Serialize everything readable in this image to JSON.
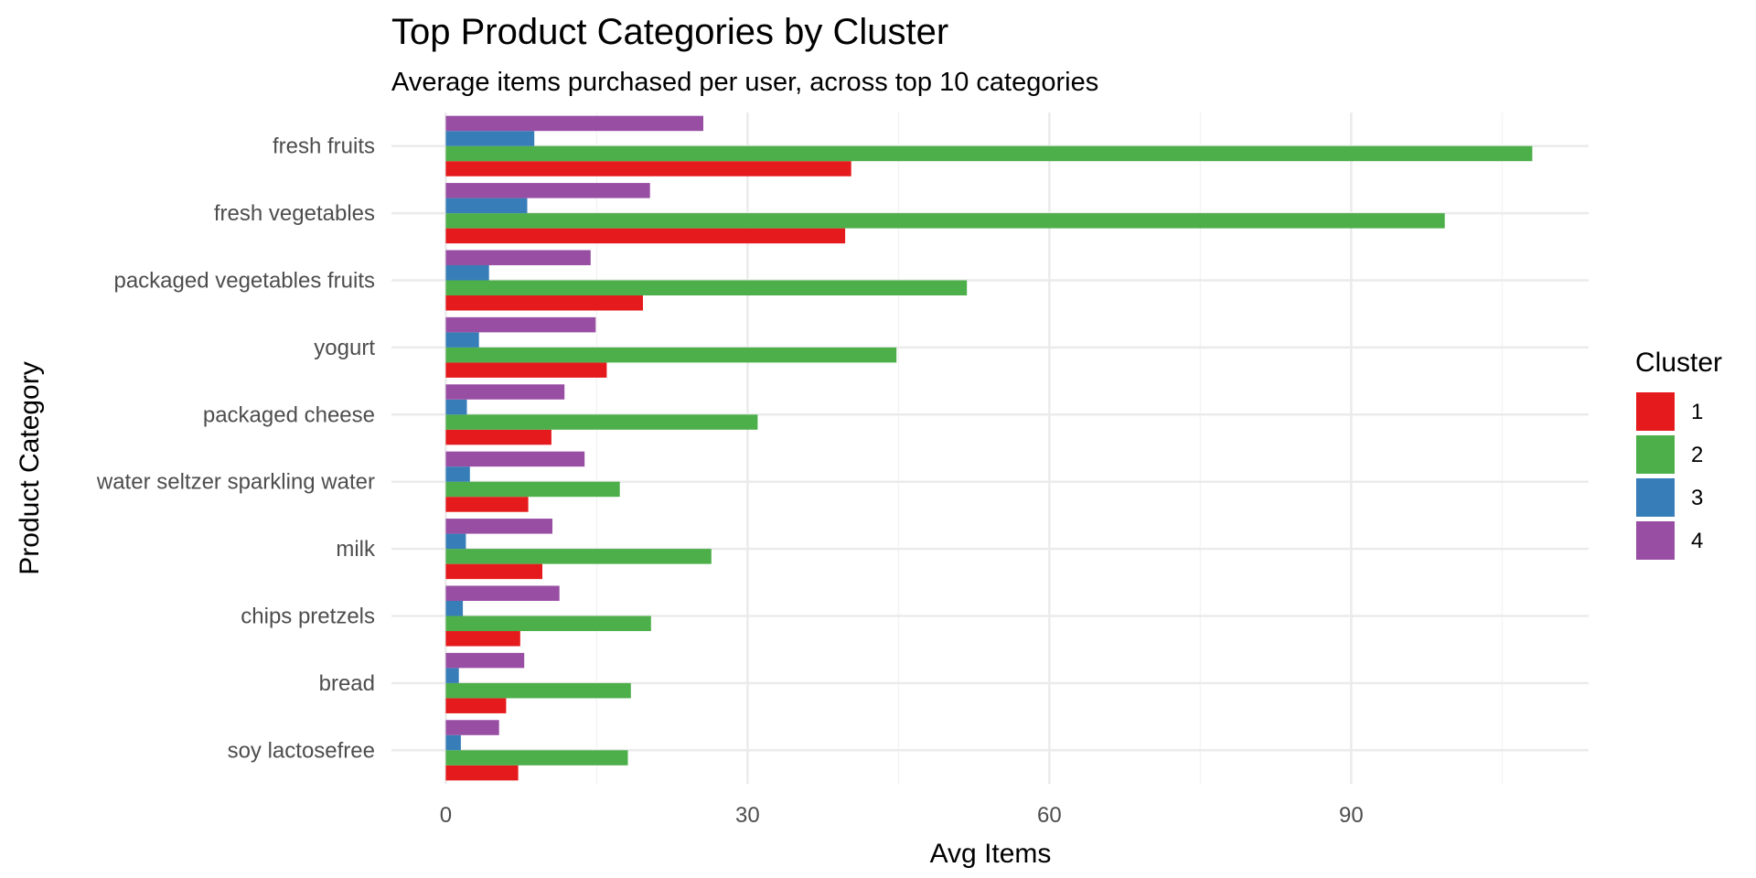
{
  "chart_data": {
    "type": "bar",
    "orientation": "horizontal",
    "title": "Top Product Categories by Cluster",
    "subtitle": "Average items purchased per user, across top 10 categories",
    "xlabel": "Avg Items",
    "ylabel": "Product Category",
    "xlim": [
      -5.4,
      113.6
    ],
    "xticks": [
      0,
      30,
      60,
      90
    ],
    "grid": true,
    "legend": {
      "title": "Cluster",
      "position": "right"
    },
    "categories": [
      "fresh fruits",
      "fresh vegetables",
      "packaged vegetables fruits",
      "yogurt",
      "packaged cheese",
      "water seltzer sparkling water",
      "milk",
      "chips pretzels",
      "bread",
      "soy lactosefree"
    ],
    "series": [
      {
        "name": "1",
        "color": "#e41a1c",
        "values": [
          40.3,
          39.7,
          19.6,
          16.0,
          10.5,
          8.2,
          9.6,
          7.4,
          6.0,
          7.2
        ]
      },
      {
        "name": "2",
        "color": "#4daf4a",
        "values": [
          108.0,
          99.3,
          51.8,
          44.8,
          31.0,
          17.3,
          26.4,
          20.4,
          18.4,
          18.1
        ]
      },
      {
        "name": "3",
        "color": "#377eb8",
        "values": [
          8.8,
          8.1,
          4.3,
          3.3,
          2.1,
          2.4,
          2.0,
          1.7,
          1.3,
          1.5
        ]
      },
      {
        "name": "4",
        "color": "#984ea3",
        "values": [
          25.6,
          20.3,
          14.4,
          14.9,
          11.8,
          13.8,
          10.6,
          11.3,
          7.8,
          5.3
        ]
      }
    ]
  }
}
